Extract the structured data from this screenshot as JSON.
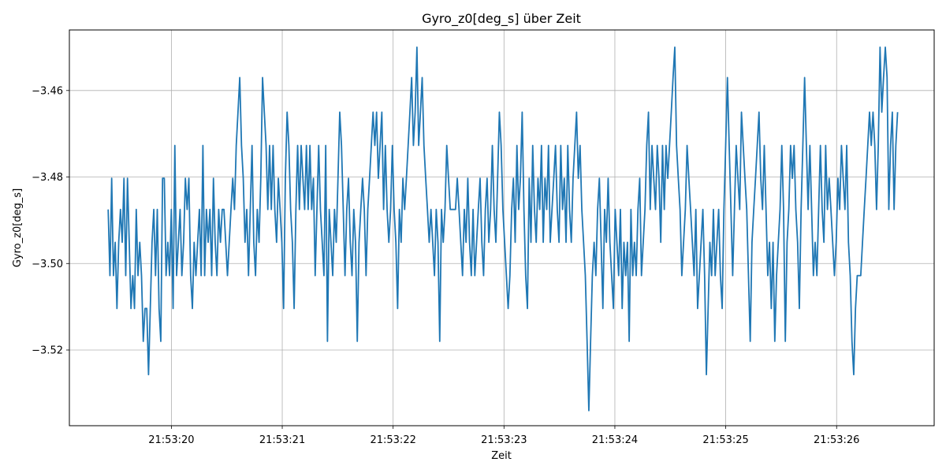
{
  "chart_data": {
    "type": "line",
    "title": "Gyro_z0[deg_s] über Zeit",
    "xlabel": "Zeit",
    "ylabel": "Gyro_z0[deg_s]",
    "x_range_seconds": [
      19.08,
      26.88
    ],
    "xlim": [
      "21:53:19.08",
      "21:53:26.88"
    ],
    "ylim": [
      -3.5375,
      -3.446
    ],
    "x_ticks": [
      "21:53:20",
      "21:53:21",
      "21:53:22",
      "21:53:23",
      "21:53:24",
      "21:53:25",
      "21:53:26"
    ],
    "y_ticks": [
      -3.46,
      -3.48,
      -3.5,
      -3.52
    ],
    "y_tick_labels": [
      "−3.46",
      "−3.48",
      "−3.50",
      "−3.52"
    ],
    "grid": true,
    "series": [
      {
        "color": "#1f77b4",
        "x_start": "21:53:19.43",
        "x_end": "21:53:26.55",
        "values": [
          -3.4875,
          -3.5028,
          -3.4803,
          -3.5028,
          -3.4951,
          -3.5104,
          -3.4951,
          -3.4875,
          -3.4951,
          -3.4803,
          -3.5028,
          -3.4803,
          -3.4951,
          -3.5104,
          -3.5028,
          -3.5104,
          -3.4875,
          -3.5028,
          -3.4951,
          -3.5028,
          -3.518,
          -3.5104,
          -3.5104,
          -3.5257,
          -3.5104,
          -3.4951,
          -3.4875,
          -3.5028,
          -3.4875,
          -3.5104,
          -3.518,
          -3.4803,
          -3.4803,
          -3.5028,
          -3.4951,
          -3.5028,
          -3.4875,
          -3.5104,
          -3.4727,
          -3.5028,
          -3.4951,
          -3.4875,
          -3.5028,
          -3.4951,
          -3.4803,
          -3.4875,
          -3.4803,
          -3.5028,
          -3.5104,
          -3.4951,
          -3.5028,
          -3.4951,
          -3.4875,
          -3.5028,
          -3.4727,
          -3.5028,
          -3.4875,
          -3.4951,
          -3.4875,
          -3.5028,
          -3.4803,
          -3.4951,
          -3.5028,
          -3.4875,
          -3.4951,
          -3.4875,
          -3.4875,
          -3.4951,
          -3.5028,
          -3.4951,
          -3.4875,
          -3.4803,
          -3.4875,
          -3.4727,
          -3.465,
          -3.457,
          -3.4727,
          -3.4803,
          -3.4951,
          -3.4875,
          -3.5028,
          -3.4875,
          -3.4727,
          -3.4951,
          -3.5028,
          -3.4875,
          -3.4951,
          -3.4803,
          -3.457,
          -3.465,
          -3.4727,
          -3.4875,
          -3.4727,
          -3.4875,
          -3.4727,
          -3.4875,
          -3.4951,
          -3.4803,
          -3.4875,
          -3.4951,
          -3.5104,
          -3.4803,
          -3.465,
          -3.4727,
          -3.4875,
          -3.4951,
          -3.5104,
          -3.4875,
          -3.4727,
          -3.4875,
          -3.4727,
          -3.4803,
          -3.4875,
          -3.4727,
          -3.4875,
          -3.4727,
          -3.4875,
          -3.4803,
          -3.5028,
          -3.4875,
          -3.4727,
          -3.4875,
          -3.4951,
          -3.5028,
          -3.4727,
          -3.518,
          -3.4875,
          -3.4951,
          -3.5028,
          -3.4875,
          -3.4951,
          -3.4803,
          -3.465,
          -3.4727,
          -3.4875,
          -3.5028,
          -3.4875,
          -3.4803,
          -3.4951,
          -3.5028,
          -3.4875,
          -3.4951,
          -3.518,
          -3.4951,
          -3.4875,
          -3.4803,
          -3.4875,
          -3.5028,
          -3.4875,
          -3.4803,
          -3.4727,
          -3.465,
          -3.4727,
          -3.465,
          -3.4803,
          -3.4727,
          -3.465,
          -3.4875,
          -3.4727,
          -3.4875,
          -3.4951,
          -3.4875,
          -3.4727,
          -3.4875,
          -3.4951,
          -3.5104,
          -3.4875,
          -3.4951,
          -3.4803,
          -3.4875,
          -3.4803,
          -3.4727,
          -3.465,
          -3.457,
          -3.4727,
          -3.465,
          -3.45,
          -3.4727,
          -3.465,
          -3.457,
          -3.4727,
          -3.4803,
          -3.4875,
          -3.4951,
          -3.4875,
          -3.4951,
          -3.5028,
          -3.4875,
          -3.4951,
          -3.518,
          -3.4875,
          -3.4951,
          -3.4875,
          -3.4727,
          -3.4803,
          -3.4875,
          -3.4875,
          -3.4875,
          -3.4875,
          -3.4803,
          -3.4875,
          -3.4951,
          -3.5028,
          -3.4875,
          -3.4951,
          -3.4803,
          -3.4951,
          -3.5028,
          -3.4875,
          -3.5028,
          -3.4951,
          -3.4875,
          -3.4803,
          -3.4951,
          -3.5028,
          -3.4875,
          -3.4803,
          -3.4951,
          -3.4875,
          -3.4727,
          -3.4875,
          -3.4951,
          -3.4803,
          -3.465,
          -3.4727,
          -3.4875,
          -3.4951,
          -3.5028,
          -3.5104,
          -3.5028,
          -3.4875,
          -3.4803,
          -3.4951,
          -3.4727,
          -3.4875,
          -3.4803,
          -3.465,
          -3.4875,
          -3.5028,
          -3.5104,
          -3.4803,
          -3.4951,
          -3.4727,
          -3.4875,
          -3.4951,
          -3.4803,
          -3.4875,
          -3.4727,
          -3.4951,
          -3.4803,
          -3.4875,
          -3.4727,
          -3.4951,
          -3.4875,
          -3.4803,
          -3.4727,
          -3.4875,
          -3.4951,
          -3.4727,
          -3.4875,
          -3.4803,
          -3.4951,
          -3.4727,
          -3.4875,
          -3.4951,
          -3.4803,
          -3.4727,
          -3.465,
          -3.4803,
          -3.4727,
          -3.4875,
          -3.4951,
          -3.5028,
          -3.518,
          -3.534,
          -3.518,
          -3.5028,
          -3.4951,
          -3.5028,
          -3.4875,
          -3.4803,
          -3.4951,
          -3.5104,
          -3.4875,
          -3.4951,
          -3.4803,
          -3.4951,
          -3.5028,
          -3.5104,
          -3.4875,
          -3.4951,
          -3.5028,
          -3.4875,
          -3.5104,
          -3.4951,
          -3.5028,
          -3.4951,
          -3.518,
          -3.4875,
          -3.5028,
          -3.4951,
          -3.5028,
          -3.4875,
          -3.4803,
          -3.5028,
          -3.4951,
          -3.4875,
          -3.4727,
          -3.465,
          -3.4875,
          -3.4727,
          -3.4803,
          -3.4875,
          -3.4727,
          -3.4803,
          -3.4951,
          -3.4727,
          -3.4875,
          -3.4727,
          -3.4803,
          -3.4727,
          -3.465,
          -3.457,
          -3.45,
          -3.4727,
          -3.4803,
          -3.4875,
          -3.5028,
          -3.4951,
          -3.4875,
          -3.4727,
          -3.4803,
          -3.4875,
          -3.4951,
          -3.5028,
          -3.4875,
          -3.5104,
          -3.5028,
          -3.4951,
          -3.4875,
          -3.5028,
          -3.5257,
          -3.5104,
          -3.4951,
          -3.5028,
          -3.4875,
          -3.5028,
          -3.4951,
          -3.4875,
          -3.5028,
          -3.5104,
          -3.4875,
          -3.4727,
          -3.457,
          -3.4727,
          -3.4875,
          -3.5028,
          -3.4875,
          -3.4727,
          -3.4803,
          -3.4875,
          -3.465,
          -3.4727,
          -3.4803,
          -3.4875,
          -3.5028,
          -3.518,
          -3.4951,
          -3.4875,
          -3.4803,
          -3.4727,
          -3.465,
          -3.4803,
          -3.4875,
          -3.4727,
          -3.4875,
          -3.5028,
          -3.4951,
          -3.5104,
          -3.4951,
          -3.518,
          -3.5028,
          -3.4951,
          -3.4875,
          -3.4727,
          -3.4875,
          -3.518,
          -3.4951,
          -3.4875,
          -3.4727,
          -3.4803,
          -3.4727,
          -3.4875,
          -3.4951,
          -3.5104,
          -3.4875,
          -3.4727,
          -3.457,
          -3.4727,
          -3.4875,
          -3.4727,
          -3.4875,
          -3.5028,
          -3.4951,
          -3.5028,
          -3.4875,
          -3.4727,
          -3.4875,
          -3.4951,
          -3.4727,
          -3.4875,
          -3.4803,
          -3.4875,
          -3.4951,
          -3.5028,
          -3.4951,
          -3.4803,
          -3.4875,
          -3.4727,
          -3.4803,
          -3.4875,
          -3.4727,
          -3.4951,
          -3.5028,
          -3.518,
          -3.5257,
          -3.5104,
          -3.5028,
          -3.5028,
          -3.5028,
          -3.4951,
          -3.4875,
          -3.4803,
          -3.4727,
          -3.465,
          -3.4727,
          -3.465,
          -3.4727,
          -3.4875,
          -3.4727,
          -3.45,
          -3.465,
          -3.457,
          -3.45,
          -3.457,
          -3.4875,
          -3.4727,
          -3.465,
          -3.4875,
          -3.4727,
          -3.465
        ]
      }
    ]
  }
}
